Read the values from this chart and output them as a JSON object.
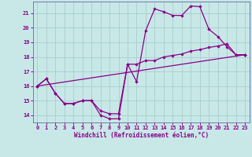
{
  "xlabel": "Windchill (Refroidissement éolien,°C)",
  "bg_color": "#c8e8e8",
  "line_color": "#880088",
  "grid_color": "#aacccc",
  "spine_color": "#7777aa",
  "xlim": [
    -0.5,
    23.5
  ],
  "ylim": [
    13.5,
    21.8
  ],
  "yticks": [
    14,
    15,
    16,
    17,
    18,
    19,
    20,
    21
  ],
  "xticks": [
    0,
    1,
    2,
    3,
    4,
    5,
    6,
    7,
    8,
    9,
    10,
    11,
    12,
    13,
    14,
    15,
    16,
    17,
    18,
    19,
    20,
    21,
    22,
    23
  ],
  "line1_x": [
    0,
    1,
    2,
    3,
    4,
    5,
    6,
    7,
    8,
    9,
    10,
    11,
    12,
    13,
    14,
    15,
    16,
    17,
    18,
    19,
    20,
    21,
    22,
    23
  ],
  "line1_y": [
    16.0,
    16.5,
    15.5,
    14.8,
    14.8,
    15.0,
    15.0,
    14.0,
    13.75,
    13.75,
    17.5,
    16.3,
    19.8,
    21.3,
    21.1,
    20.85,
    20.85,
    21.5,
    21.45,
    19.9,
    19.4,
    18.7,
    18.15,
    18.15
  ],
  "line2_x": [
    0,
    1,
    2,
    3,
    4,
    5,
    6,
    7,
    8,
    9,
    10,
    11,
    12,
    13,
    14,
    15,
    16,
    17,
    18,
    19,
    20,
    21,
    22,
    23
  ],
  "line2_y": [
    16.0,
    16.5,
    15.5,
    14.8,
    14.8,
    15.0,
    15.0,
    14.3,
    14.1,
    14.1,
    17.5,
    17.5,
    17.75,
    17.75,
    18.0,
    18.1,
    18.2,
    18.4,
    18.5,
    18.65,
    18.75,
    18.9,
    18.15,
    18.15
  ],
  "line3_x": [
    0,
    23
  ],
  "line3_y": [
    16.0,
    18.15
  ],
  "marker": "D",
  "markersize": 2.2,
  "linewidth": 0.9
}
